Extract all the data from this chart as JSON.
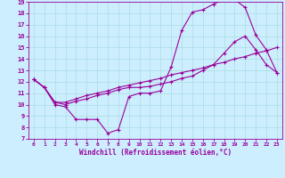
{
  "xlabel": "Windchill (Refroidissement éolien,°C)",
  "bg_color": "#cceeff",
  "line_color": "#990099",
  "grid_color": "#aadddd",
  "xlim": [
    -0.5,
    23.5
  ],
  "ylim": [
    7,
    19
  ],
  "xticks": [
    0,
    1,
    2,
    3,
    4,
    5,
    6,
    7,
    8,
    9,
    10,
    11,
    12,
    13,
    14,
    15,
    16,
    17,
    18,
    19,
    20,
    21,
    22,
    23
  ],
  "yticks": [
    7,
    8,
    9,
    10,
    11,
    12,
    13,
    14,
    15,
    16,
    17,
    18,
    19
  ],
  "line1_x": [
    0,
    1,
    2,
    3,
    4,
    5,
    6,
    7,
    8,
    9,
    10,
    11,
    12,
    13,
    14,
    15,
    16,
    17,
    18,
    19,
    20,
    21,
    22,
    23
  ],
  "line1_y": [
    12.2,
    11.5,
    10.0,
    9.8,
    8.7,
    8.7,
    8.7,
    7.5,
    7.8,
    10.7,
    11.0,
    11.0,
    11.2,
    13.3,
    16.5,
    18.1,
    18.3,
    18.8,
    19.2,
    19.2,
    18.5,
    16.1,
    14.8,
    12.8
  ],
  "line2_x": [
    0,
    1,
    2,
    3,
    4,
    5,
    6,
    7,
    8,
    9,
    10,
    11,
    12,
    13,
    14,
    15,
    16,
    17,
    18,
    19,
    20,
    21,
    22,
    23
  ],
  "line2_y": [
    12.2,
    11.5,
    10.2,
    10.2,
    10.5,
    10.8,
    11.0,
    11.2,
    11.5,
    11.7,
    11.9,
    12.1,
    12.3,
    12.6,
    12.8,
    13.0,
    13.2,
    13.5,
    13.7,
    14.0,
    14.2,
    14.5,
    14.7,
    15.0
  ],
  "line3_x": [
    0,
    1,
    2,
    3,
    4,
    5,
    6,
    7,
    8,
    9,
    10,
    11,
    12,
    13,
    14,
    15,
    16,
    17,
    18,
    19,
    20,
    21,
    22,
    23
  ],
  "line3_y": [
    12.2,
    11.5,
    10.2,
    10.0,
    10.3,
    10.5,
    10.8,
    11.0,
    11.3,
    11.5,
    11.5,
    11.6,
    11.8,
    12.0,
    12.3,
    12.5,
    13.0,
    13.5,
    14.5,
    15.5,
    16.0,
    14.8,
    13.5,
    12.8
  ],
  "marker": "+",
  "markersize": 3,
  "markeredgewidth": 0.8,
  "linewidth": 0.8
}
